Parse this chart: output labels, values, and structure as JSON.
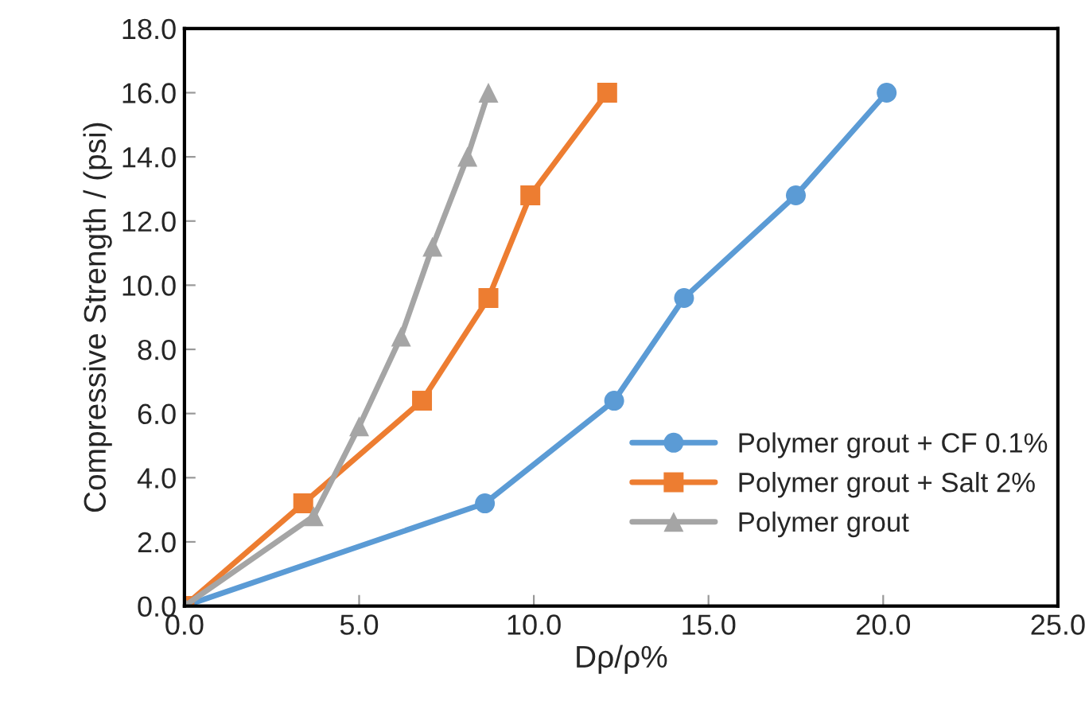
{
  "chart_data": {
    "type": "line",
    "xlabel": "Dρ/ρ%",
    "ylabel": "Compressive Strength / (psi)",
    "xlim": [
      0,
      25
    ],
    "xticks": [
      {
        "value": 0,
        "label": "0.0"
      },
      {
        "value": 5,
        "label": "5.0"
      },
      {
        "value": 10,
        "label": "10.0"
      },
      {
        "value": 15,
        "label": "15.0"
      },
      {
        "value": 20,
        "label": "20.0"
      },
      {
        "value": 25,
        "label": "25.0"
      }
    ],
    "ylim": [
      0,
      18
    ],
    "yticks": [
      {
        "value": 0,
        "label": "0.0"
      },
      {
        "value": 2,
        "label": "2.0"
      },
      {
        "value": 4,
        "label": "4.0"
      },
      {
        "value": 6,
        "label": "6.0"
      },
      {
        "value": 8,
        "label": "8.0"
      },
      {
        "value": 10,
        "label": "10.0"
      },
      {
        "value": 12,
        "label": "12.0"
      },
      {
        "value": 14,
        "label": "14.0"
      },
      {
        "value": 16,
        "label": "16.0"
      },
      {
        "value": 18,
        "label": "18.0"
      }
    ],
    "grid": false,
    "legend": "bottom right",
    "series": [
      {
        "name": "Polymer grout + CF 0.1%",
        "color": "#5b9bd5",
        "marker": "circle",
        "x": [
          0,
          8.6,
          12.3,
          14.3,
          17.5,
          20.1
        ],
        "values": [
          0,
          3.2,
          6.4,
          9.6,
          12.8,
          16.0
        ]
      },
      {
        "name": "Polymer grout + Salt 2%",
        "color": "#ed7d31",
        "marker": "square",
        "x": [
          0,
          3.4,
          6.8,
          8.7,
          9.9,
          12.1
        ],
        "values": [
          0,
          3.2,
          6.4,
          9.6,
          12.8,
          16.0
        ]
      },
      {
        "name": "Polymer grout",
        "color": "#a5a5a5",
        "marker": "triangle",
        "x": [
          0,
          3.7,
          5.0,
          6.2,
          7.1,
          8.1,
          8.7
        ],
        "values": [
          0,
          2.8,
          5.6,
          8.4,
          11.2,
          14.0,
          16.0
        ]
      }
    ]
  }
}
